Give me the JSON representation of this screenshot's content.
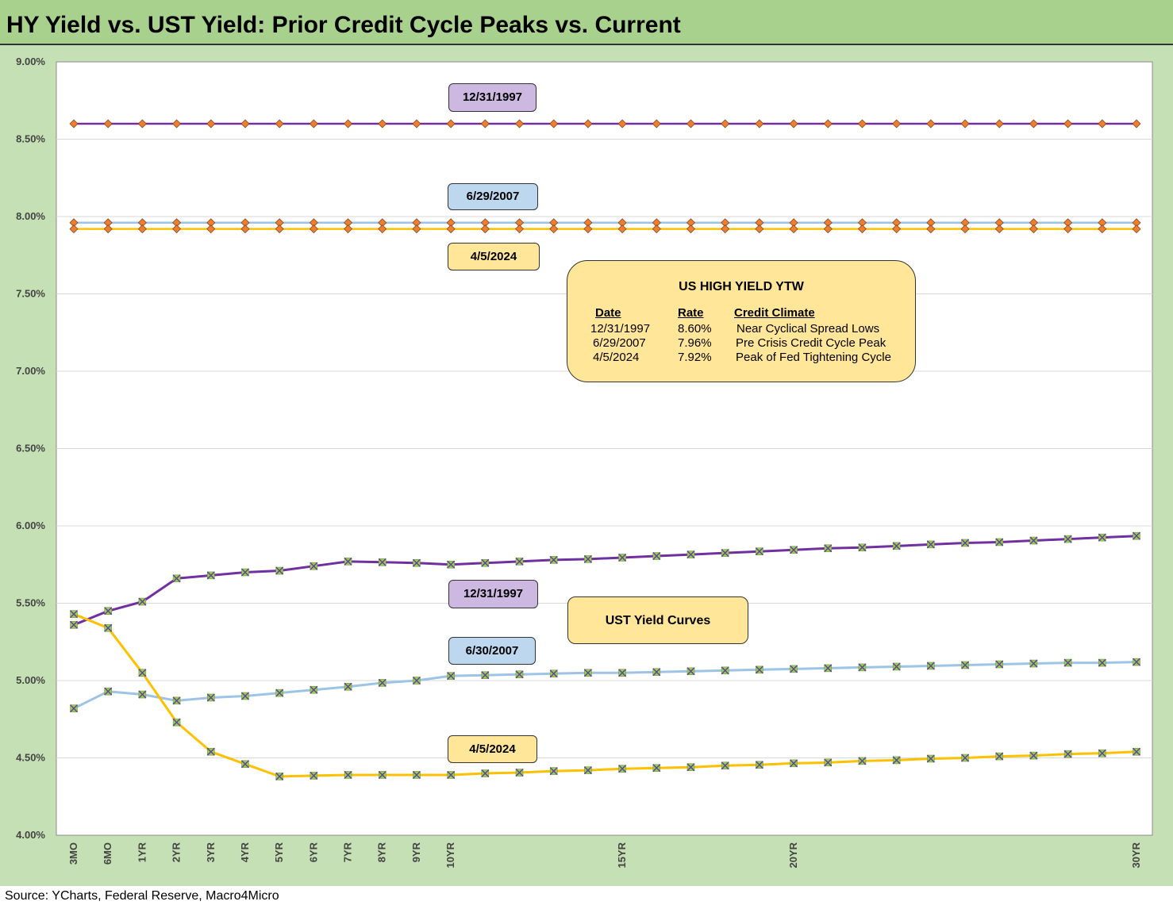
{
  "title": "HY Yield vs. UST Yield: Prior Credit Cycle Peaks vs. Current",
  "source": "Source: YCharts, Federal Reserve, Macro4Micro",
  "colors": {
    "title_bg": "#a9d18e",
    "outer_bg": "#c5e0b4",
    "series_1997": "#7030a0",
    "series_2007": "#9dc3e6",
    "series_2024": "#ffc000",
    "hy_marker": "#ed7d31",
    "ust_marker": "#92d050",
    "tag_1997": "#ccb8e0",
    "tag_2007": "#bdd7ee",
    "tag_2024": "#ffe699"
  },
  "tags": {
    "hy_1997": "12/31/1997",
    "hy_2007": "6/29/2007",
    "hy_2024": "4/5/2024",
    "ust_1997": "12/31/1997",
    "ust_2007": "6/30/2007",
    "ust_2024": "4/5/2024"
  },
  "ytw_box": {
    "title": "US HIGH YIELD YTW",
    "headers": [
      "Date",
      "Rate",
      "Credit Climate"
    ],
    "rows": [
      [
        "12/31/1997",
        "8.60%",
        "Near Cyclical Spread Lows"
      ],
      [
        "6/29/2007",
        "7.96%",
        "Pre Crisis Credit Cycle Peak"
      ],
      [
        "4/5/2024",
        "7.92%",
        "Peak of Fed Tightening Cycle"
      ]
    ]
  },
  "ust_box": {
    "label": "UST Yield Curves"
  },
  "chart_data": {
    "type": "line",
    "ylim": [
      4.0,
      9.0
    ],
    "y_ticks": [
      "4.00%",
      "4.50%",
      "5.00%",
      "5.50%",
      "6.00%",
      "6.50%",
      "7.00%",
      "7.50%",
      "8.00%",
      "8.50%",
      "9.00%"
    ],
    "x_maturities_years": [
      0.25,
      0.5,
      1,
      2,
      3,
      4,
      5,
      6,
      7,
      8,
      9,
      10,
      11,
      12,
      13,
      14,
      15,
      16,
      17,
      18,
      19,
      20,
      21,
      22,
      23,
      24,
      25,
      26,
      27,
      28,
      29,
      30
    ],
    "x_tick_labels": [
      "3MO",
      "6MO",
      "1YR",
      "2YR",
      "3YR",
      "4YR",
      "5YR",
      "6YR",
      "7YR",
      "8YR",
      "9YR",
      "10YR",
      "",
      "",
      "",
      "",
      "15YR",
      "",
      "",
      "",
      "",
      "20YR",
      "",
      "",
      "",
      "",
      "",
      "",
      "",
      "",
      "",
      "30YR"
    ],
    "grid": true,
    "series": [
      {
        "name": "12/31/1997",
        "kind": "hy",
        "color_key": "series_1997",
        "constant": 8.6
      },
      {
        "name": "6/29/2007",
        "kind": "hy",
        "color_key": "series_2007",
        "constant": 7.96
      },
      {
        "name": "4/5/2024",
        "kind": "hy",
        "color_key": "series_2024",
        "constant": 7.92
      },
      {
        "name": "12/31/1997",
        "kind": "ust",
        "color_key": "series_1997",
        "values": [
          5.36,
          5.45,
          5.51,
          5.66,
          5.68,
          5.7,
          5.71,
          5.74,
          5.77,
          5.765,
          5.76,
          5.75,
          5.76,
          5.77,
          5.78,
          5.785,
          5.795,
          5.805,
          5.815,
          5.825,
          5.835,
          5.845,
          5.855,
          5.86,
          5.87,
          5.88,
          5.89,
          5.895,
          5.905,
          5.915,
          5.925,
          5.935
        ]
      },
      {
        "name": "6/30/2007",
        "kind": "ust",
        "color_key": "series_2007",
        "values": [
          4.82,
          4.93,
          4.91,
          4.87,
          4.89,
          4.9,
          4.92,
          4.94,
          4.96,
          4.985,
          5.0,
          5.03,
          5.035,
          5.04,
          5.045,
          5.05,
          5.05,
          5.055,
          5.06,
          5.065,
          5.07,
          5.075,
          5.08,
          5.085,
          5.09,
          5.095,
          5.1,
          5.105,
          5.11,
          5.115,
          5.115,
          5.12
        ]
      },
      {
        "name": "4/5/2024",
        "kind": "ust",
        "color_key": "series_2024",
        "values": [
          5.43,
          5.34,
          5.05,
          4.73,
          4.54,
          4.46,
          4.38,
          4.385,
          4.39,
          4.39,
          4.39,
          4.39,
          4.4,
          4.405,
          4.415,
          4.42,
          4.43,
          4.435,
          4.44,
          4.45,
          4.455,
          4.465,
          4.47,
          4.48,
          4.485,
          4.495,
          4.5,
          4.51,
          4.515,
          4.525,
          4.53,
          4.54
        ]
      }
    ]
  }
}
